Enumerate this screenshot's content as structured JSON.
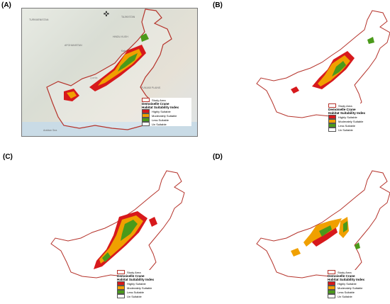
{
  "panels": [
    {
      "label": "(A)",
      "legend": {
        "area": "Study Area",
        "title": [
          "Demoiselle Crane",
          "Habitat Suitability Index"
        ],
        "classes": [
          "Highly Suitable",
          "Moderately Suitable",
          "Less Suitable",
          "Un Suitable"
        ]
      }
    },
    {
      "label": "(B)",
      "legend": {
        "area": "Study Area",
        "title": [
          "Demoiselle Crane",
          "Habitat Suitability Index"
        ],
        "classes": [
          "Highly Suitable",
          "Moderately Suitable",
          "Less Suitable",
          "Un Suitable"
        ]
      }
    },
    {
      "label": "(C)",
      "legend": {
        "area": "Study Area",
        "title": [
          "Demoiselle Crane",
          "Habitat Suitability Index"
        ],
        "classes": [
          "Highly Suitable",
          "Moderately Suitable",
          "Less Suitable",
          "Un Suitable"
        ]
      }
    },
    {
      "label": "(D)",
      "legend": {
        "area": "Study Area",
        "title": [
          "Demoiselle Crane",
          "Habitat Suitability Index"
        ],
        "classes": [
          "Highly Suitable",
          "Moderately Suitable",
          "Less Suitable",
          "Un Suitable"
        ]
      }
    }
  ],
  "colors": {
    "highly": "#d7191c",
    "moderately": "#f0a000",
    "less": "#4a9a1a",
    "un": "#ffffff",
    "outline": "#b5332b"
  },
  "basemap_places": [
    "TURKMENISTAN",
    "AFGHANISTAN",
    "TAJIKISTAN",
    "HINDU KUSH",
    "PUNJAB PLAINS",
    "THAR DESERT",
    "Arabian Sea",
    "Kabul",
    "Quetta"
  ]
}
